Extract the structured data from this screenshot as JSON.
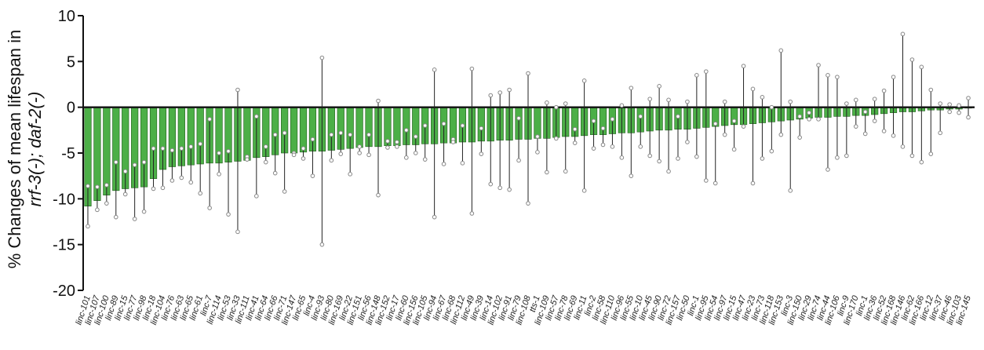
{
  "chart_data": {
    "type": "bar",
    "ylabel_line1": "% Changes of mean lifespan in",
    "ylabel_line2": "rrf-3(-); daf-2(-)",
    "ylim": [
      -20,
      10
    ],
    "yticks": [
      10,
      5,
      0,
      -5,
      -10,
      -15,
      -20
    ],
    "colors": {
      "bar": "#4caf47",
      "bar_edge": "#1f5c1a",
      "axis": "#111111",
      "error": "#222222",
      "marker": "#888888"
    },
    "categories": [
      "linc-101",
      "linc-107",
      "linc-100",
      "linc-89",
      "linc-15",
      "linc-77",
      "linc-98",
      "linc-18",
      "linc-104",
      "linc-76",
      "linc-63",
      "linc-65",
      "linc-61",
      "linc-7",
      "linc-114",
      "linc-53",
      "linc-33",
      "linc-111",
      "linc-41",
      "linc-64",
      "linc-66",
      "linc-71",
      "linc-147",
      "linc-65",
      "linc-4",
      "linc-93",
      "linc-80",
      "linc-169",
      "linc-22",
      "linc-151",
      "linc-56",
      "linc-148",
      "linc-152",
      "linc-17",
      "linc-60",
      "linc-156",
      "linc-105",
      "linc-94",
      "linc-67",
      "linc-68",
      "linc-112",
      "linc-49",
      "linc-39",
      "linc-14",
      "linc-102",
      "linc-91",
      "linc-79",
      "linc-108",
      "tts-1",
      "linc-109",
      "linc-57",
      "linc-78",
      "linc-69",
      "linc-11",
      "linc-2",
      "linc-58",
      "linc-110",
      "linc-96",
      "linc-55",
      "linc-10",
      "linc-45",
      "linc-90",
      "linc-72",
      "linc-157",
      "linc-50",
      "linc-1",
      "linc-95",
      "linc-54",
      "linc-97",
      "linc-15",
      "linc-47",
      "linc-23",
      "linc-73",
      "linc-118",
      "linc-153",
      "linc-3",
      "linc-150",
      "linc-29",
      "linc-74",
      "linc-44",
      "linc-106",
      "linc-9",
      "linc-170",
      "linc-1",
      "linc-36",
      "linc-52",
      "linc-168",
      "linc-146",
      "linc-62",
      "linc-166",
      "linc-12",
      "linc-37",
      "linc-46",
      "linc-103",
      "linc-145"
    ],
    "values": [
      -10.8,
      -10.2,
      -9.6,
      -9.1,
      -8.9,
      -8.8,
      -8.7,
      -7.8,
      -6.8,
      -6.5,
      -6.4,
      -6.3,
      -6.2,
      -6.1,
      -6.1,
      -6.0,
      -5.9,
      -5.8,
      -5.5,
      -5.4,
      -5.2,
      -5.0,
      -5.0,
      -4.9,
      -4.8,
      -4.8,
      -4.7,
      -4.6,
      -4.5,
      -4.4,
      -4.3,
      -4.3,
      -4.2,
      -4.2,
      -4.1,
      -4.1,
      -4.0,
      -4.0,
      -3.9,
      -3.9,
      -3.8,
      -3.8,
      -3.7,
      -3.7,
      -3.6,
      -3.6,
      -3.5,
      -3.5,
      -3.4,
      -3.4,
      -3.3,
      -3.2,
      -3.2,
      -3.1,
      -3.0,
      -3.0,
      -2.9,
      -2.8,
      -2.8,
      -2.7,
      -2.6,
      -2.5,
      -2.5,
      -2.4,
      -2.4,
      -2.3,
      -2.2,
      -2.1,
      -2.0,
      -1.9,
      -1.9,
      -1.8,
      -1.7,
      -1.6,
      -1.5,
      -1.4,
      -1.3,
      -1.2,
      -1.1,
      -1.1,
      -1.0,
      -1.0,
      -0.9,
      -0.9,
      -0.8,
      -0.7,
      -0.6,
      -0.5,
      -0.5,
      -0.4,
      -0.3,
      -0.3,
      -0.2,
      -0.2,
      -0.1
    ],
    "error_high": [
      -8.6,
      -8.7,
      -8.5,
      -6.0,
      -7.0,
      -6.3,
      -6.0,
      -4.5,
      -4.5,
      -4.7,
      -4.5,
      -4.3,
      -4.0,
      -1.3,
      -5.0,
      -4.8,
      1.9,
      -5.4,
      -1.0,
      -4.3,
      -3.0,
      -2.8,
      -5.0,
      -4.5,
      -3.5,
      5.4,
      -3.0,
      -2.8,
      -3.0,
      -4.3,
      -3.0,
      0.7,
      -3.7,
      -3.8,
      -2.5,
      -3.2,
      -2.0,
      4.1,
      -1.8,
      -3.5,
      -2.0,
      4.2,
      -2.3,
      1.3,
      1.6,
      1.9,
      -1.2,
      3.7,
      -3.2,
      0.5,
      0.0,
      0.4,
      -2.4,
      2.9,
      -1.5,
      -2.3,
      -1.3,
      0.2,
      2.1,
      -1.0,
      0.9,
      2.3,
      0.8,
      -1.0,
      0.6,
      3.5,
      3.9,
      -1.8,
      0.6,
      -1.5,
      4.5,
      2.0,
      1.1,
      0.0,
      6.2,
      0.6,
      -1.0,
      -0.6,
      4.6,
      3.5,
      3.3,
      0.4,
      0.8,
      -0.5,
      0.9,
      1.8,
      3.3,
      8.0,
      5.2,
      4.4,
      1.9,
      0.4,
      0.3,
      0.2,
      1.0
    ],
    "error_low": [
      -13.0,
      -11.2,
      -10.5,
      -12.0,
      -9.5,
      -12.2,
      -11.4,
      -8.9,
      -8.8,
      -8.0,
      -7.7,
      -8.2,
      -9.4,
      -11.0,
      -7.3,
      -11.7,
      -13.6,
      -5.7,
      -9.7,
      -6.0,
      -7.2,
      -9.2,
      -5.2,
      -5.6,
      -7.5,
      -15.0,
      -5.8,
      -5.1,
      -7.3,
      -5.0,
      -5.2,
      -9.6,
      -4.4,
      -4.3,
      -5.5,
      -5.0,
      -5.7,
      -12.0,
      -6.2,
      -3.8,
      -6.1,
      -11.6,
      -5.1,
      -8.4,
      -8.8,
      -9.0,
      -5.8,
      -10.5,
      -4.9,
      -7.1,
      -3.4,
      -7.0,
      -3.9,
      -9.1,
      -4.5,
      -4.1,
      -4.3,
      -5.5,
      -7.5,
      -4.3,
      -5.3,
      -5.9,
      -7.0,
      -5.6,
      -3.8,
      -5.4,
      -8.0,
      -8.3,
      -3.0,
      -4.6,
      -2.1,
      -8.3,
      -5.6,
      -4.8,
      -3.0,
      -9.1,
      -3.3,
      -1.3,
      -1.3,
      -6.8,
      -5.5,
      -5.3,
      -2.1,
      -2.9,
      -1.5,
      -2.6,
      -3.1,
      -4.3,
      -5.3,
      -6.0,
      -5.1,
      -2.8,
      -0.5,
      -0.6,
      -1.1
    ]
  }
}
